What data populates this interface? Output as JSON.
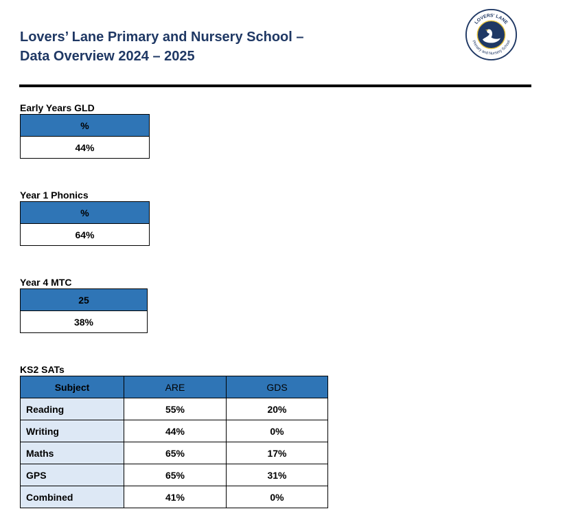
{
  "header": {
    "title_line1": "Lovers’ Lane Primary and Nursery School –",
    "title_line2": "Data Overview 2024 – 2025",
    "logo": {
      "text_top": "LOVERS' LANE",
      "text_bottom": "Primary and Nursery School",
      "icon": "swan-icon",
      "color_ring": "#1f3864",
      "color_accent": "#e8c33a"
    }
  },
  "colors": {
    "header_blue": "#2f75b6",
    "subject_fill": "#dde8f5",
    "title_navy": "#1f3864"
  },
  "early_years": {
    "label": "Early Years GLD",
    "header": "%",
    "value": "44%"
  },
  "phonics": {
    "label": "Year 1 Phonics",
    "header": "%",
    "value": "64%"
  },
  "mtc": {
    "label": "Year 4 MTC",
    "header": "25",
    "value": "38%"
  },
  "ks2": {
    "label": "KS2 SATs",
    "columns": [
      "Subject",
      "ARE",
      "GDS"
    ],
    "rows": [
      {
        "subject": "Reading",
        "are": "55%",
        "gds": "20%"
      },
      {
        "subject": "Writing",
        "are": "44%",
        "gds": "0%"
      },
      {
        "subject": "Maths",
        "are": "65%",
        "gds": "17%"
      },
      {
        "subject": "GPS",
        "are": "65%",
        "gds": "31%"
      },
      {
        "subject": "Combined",
        "are": "41%",
        "gds": "0%"
      }
    ]
  }
}
